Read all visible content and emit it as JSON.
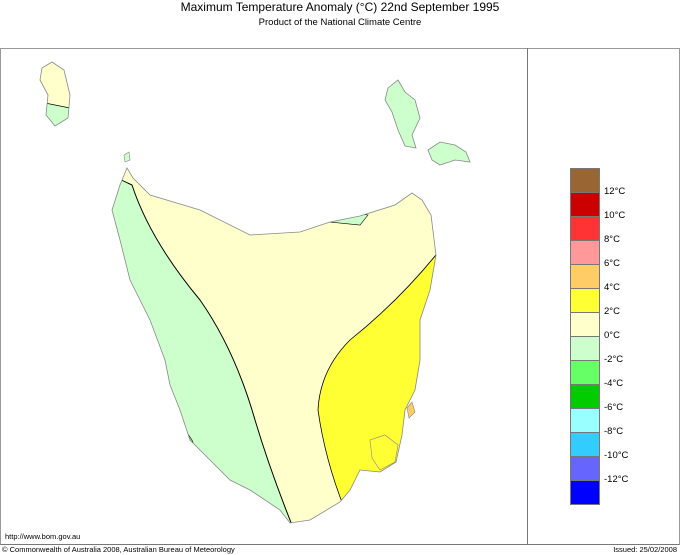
{
  "header": {
    "title": "Maximum Temperature Anomaly (°C)  22nd September 1995",
    "subtitle": "Product of the National Climate Centre"
  },
  "footer": {
    "url": "http://www.bom.gov.au",
    "copyright": "© Commonwealth of Australia 2008, Australian Bureau of Meteorology",
    "issued": "Issued: 25/02/2008"
  },
  "legend": {
    "colors": [
      "#996633",
      "#cc0000",
      "#ff3333",
      "#ff9999",
      "#ffcc66",
      "#ffff33",
      "#ffffcc",
      "#ccffcc",
      "#66ff66",
      "#00cc00",
      "#99ffff",
      "#33ccff",
      "#6666ff",
      "#0000ff"
    ],
    "labels": [
      "12°C",
      "10°C",
      "8°C",
      "6°C",
      "4°C",
      "2°C",
      "0°C",
      "-2°C",
      "-4°C",
      "-6°C",
      "-8°C",
      "-10°C",
      "-12°C"
    ]
  },
  "map": {
    "region": "Tasmania",
    "anomaly_colors": {
      "neg2_0": "#ccffcc",
      "zero_2": "#ffffcc",
      "two_4": "#ffff33",
      "neg4_neg2": "#66ff66",
      "four_6": "#ffcc66"
    }
  }
}
